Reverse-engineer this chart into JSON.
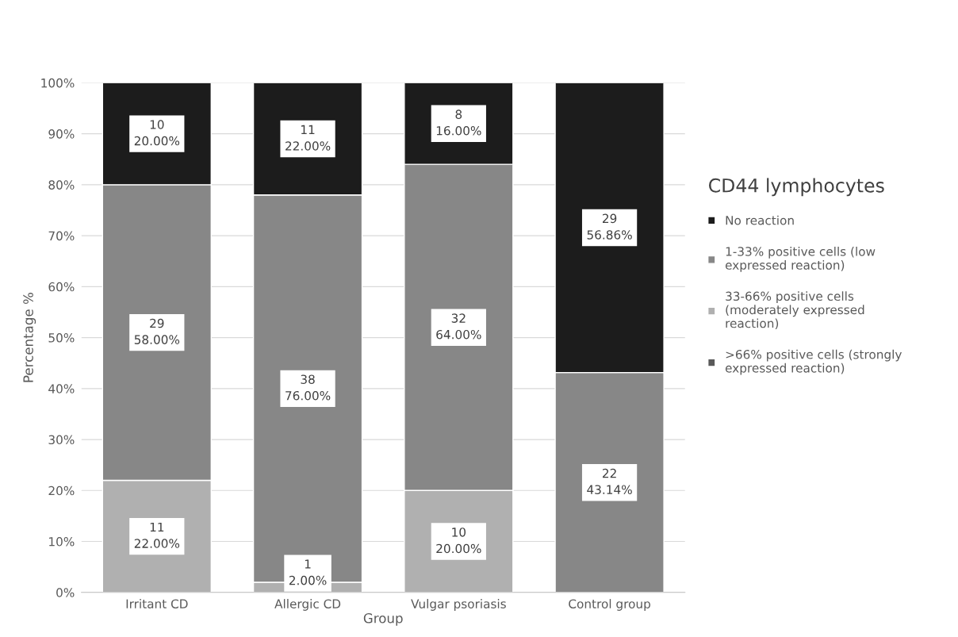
{
  "chart_data": {
    "type": "bar",
    "stacked": true,
    "xlabel": "Group",
    "ylabel": "Percentage %",
    "legend_title": "CD44 lymphocytes",
    "legend": "right",
    "grid": "y",
    "categories": [
      "Irritant CD",
      "Allergic CD",
      "Vulgar psoriasis",
      "Control group"
    ],
    "ylim": [
      0,
      100
    ],
    "yticks": [
      {
        "value": 0,
        "label": "0%"
      },
      {
        "value": 10,
        "label": "10%"
      },
      {
        "value": 20,
        "label": "20%"
      },
      {
        "value": 30,
        "label": "30%"
      },
      {
        "value": 40,
        "label": "40%"
      },
      {
        "value": 50,
        "label": "50%"
      },
      {
        "value": 60,
        "label": "60%"
      },
      {
        "value": 70,
        "label": "70%"
      },
      {
        "value": 80,
        "label": "80%"
      },
      {
        "value": 90,
        "label": "90%"
      },
      {
        "value": 100,
        "label": "100%"
      }
    ],
    "series": [
      {
        "name": ">66% positive cells (strongly\nexpressed reaction)",
        "color": "#595959",
        "values": [
          0,
          0,
          0,
          0
        ]
      },
      {
        "name": "33-66% positive cells\n(moderately expressed\nreaction)",
        "color": "#b0b0b0",
        "values": [
          22,
          2,
          20,
          0
        ],
        "value_labels": [
          "11\n22.00%",
          "1\n2.00%",
          "10\n20.00%",
          null
        ]
      },
      {
        "name": "1-33% positive cells (low\nexpressed reaction)",
        "color": "#878787",
        "values": [
          58,
          76,
          64,
          43.14
        ],
        "value_labels": [
          "29\n58.00%",
          "38\n76.00%",
          "32\n64.00%",
          "22\n43.14%"
        ]
      },
      {
        "name": "No reaction",
        "color": "#1c1c1c",
        "values": [
          20,
          22,
          16,
          56.86
        ],
        "value_labels": [
          "10\n20.00%",
          "11\n22.00%",
          "8\n16.00%",
          "29\n56.86%"
        ]
      }
    ]
  }
}
